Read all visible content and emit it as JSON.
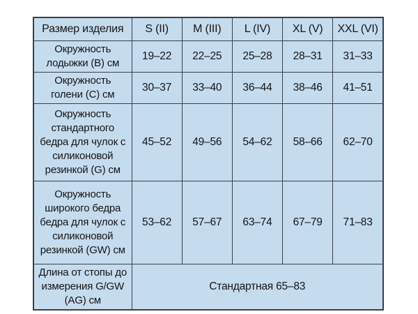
{
  "colors": {
    "page_bg": "#ffffff",
    "cell_bg": "#c5dbee",
    "border": "#39404a",
    "text": "#151515"
  },
  "table": {
    "headers": [
      "Размер изделия",
      "S (II)",
      "M (III)",
      "L (IV)",
      "XL (V)",
      "XXL (VI)"
    ],
    "rows": [
      {
        "label": "Окружность\nлодыжки (B) см",
        "values": [
          "19–22",
          "22–25",
          "25–28",
          "28–31",
          "31–33"
        ]
      },
      {
        "label": "Окружность\nголени (C) см",
        "values": [
          "30–37",
          "33–40",
          "36–44",
          "38–46",
          "41–51"
        ]
      },
      {
        "label": "Окружность\nстандартного\nбедра для чулок с\nсиликоновой\nрезинкой (G) см",
        "values": [
          "45–52",
          "49–56",
          "54–62",
          "58–66",
          "62–70"
        ]
      },
      {
        "label": "Окружность\nширокого бедра\nбедра для чулок с\nсиликоновой\nрезинкой (GW) см",
        "values": [
          "53–62",
          "57–67",
          "63–74",
          "67–79",
          "71–83"
        ]
      },
      {
        "label": "Длина от стопы до\nизмерения G/GW\n(AG) см",
        "span_value": "Стандартная 65–83"
      }
    ]
  },
  "chart_data": {
    "type": "table",
    "title": "",
    "columns": [
      "Размер изделия",
      "S (II)",
      "M (III)",
      "L (IV)",
      "XL (V)",
      "XXL (VI)"
    ],
    "rows": [
      [
        "Окружность лодыжки (B) см",
        "19–22",
        "22–25",
        "25–28",
        "28–31",
        "31–33"
      ],
      [
        "Окружность голени (C) см",
        "30–37",
        "33–40",
        "36–44",
        "38–46",
        "41–51"
      ],
      [
        "Окружность стандартного бедра для чулок с силиконовой резинкой (G) см",
        "45–52",
        "49–56",
        "54–62",
        "58–66",
        "62–70"
      ],
      [
        "Окружность широкого бедра бедра для чулок с силиконовой резинкой (GW) см",
        "53–62",
        "57–67",
        "63–74",
        "67–79",
        "71–83"
      ],
      [
        "Длина от стопы до измерения G/GW (AG) см",
        "Стандартная 65–83 (объединённая ячейка)"
      ]
    ]
  }
}
